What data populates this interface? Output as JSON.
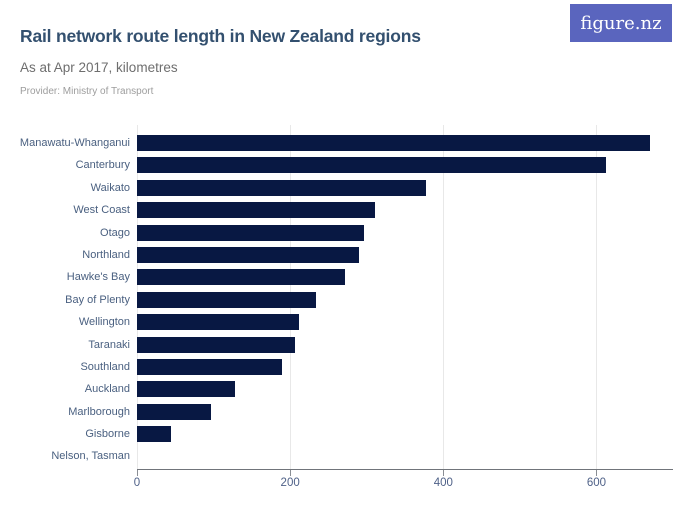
{
  "header": {
    "title": "Rail network route length in New Zealand regions",
    "subtitle": "As at Apr 2017, kilometres",
    "provider": "Provider: Ministry of Transport"
  },
  "logo": {
    "text": "figure.nz",
    "background_color": "#5A65BE",
    "text_color": "#FFFFFF"
  },
  "chart_data": {
    "type": "bar",
    "orientation": "horizontal",
    "title": "Rail network route length in New Zealand regions",
    "subtitle": "As at Apr 2017, kilometres",
    "unit": "kilometres",
    "categories": [
      "Manawatu-Whanganui",
      "Canterbury",
      "Waikato",
      "West Coast",
      "Otago",
      "Northland",
      "Hawke's Bay",
      "Bay of Plenty",
      "Wellington",
      "Taranaki",
      "Southland",
      "Auckland",
      "Marlborough",
      "Gisborne",
      "Nelson, Tasman"
    ],
    "values": [
      670,
      612,
      377,
      311,
      296,
      290,
      272,
      234,
      212,
      206,
      190,
      128,
      97,
      44,
      0
    ],
    "xlim": [
      0,
      700
    ],
    "x_ticks": [
      0,
      200,
      400,
      600
    ],
    "grid": true,
    "legend": false,
    "bar_color": "#081843",
    "gridline_color": "#E8E8E8",
    "axis_color": "#70747A"
  }
}
